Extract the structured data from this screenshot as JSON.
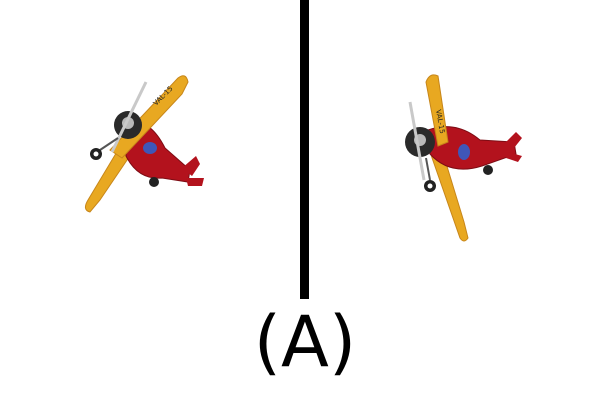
{
  "caption": "(A)",
  "panels": [
    {
      "subject": "toy-biplane",
      "view": "rotated-left"
    },
    {
      "subject": "toy-biplane",
      "view": "rotated-right"
    }
  ],
  "plane": {
    "wing_text": "VAL-15",
    "colors": {
      "wing": "#e8a821",
      "body": "#b3121d",
      "propeller": "#c9c9c9",
      "engine": "#2a2a2a",
      "canopy": "#3f56b8"
    }
  },
  "divider_color": "#000000"
}
